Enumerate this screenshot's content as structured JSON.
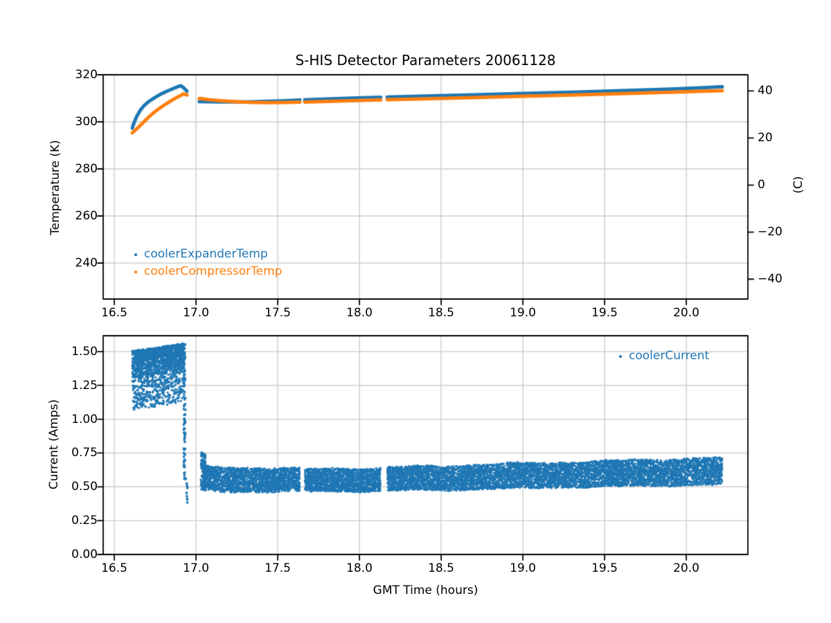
{
  "colors": {
    "blue": "#1f77b4",
    "orange": "#ff7f0e",
    "grid": "#cccccc",
    "spine": "#000000",
    "text": "#000000",
    "background": "#ffffff"
  },
  "chart_data": [
    {
      "type": "scatter",
      "title": "S-HIS Detector Parameters 20061128",
      "ylabel": "Temperature (K)",
      "y2label": "(C)",
      "xlim": [
        16.432,
        20.377
      ],
      "ylim": [
        224.7,
        320
      ],
      "grid": true,
      "legend_loc": "lower left",
      "xticks": [
        {
          "v": 16.5,
          "label": "16.5"
        },
        {
          "v": 17.0,
          "label": "17.0"
        },
        {
          "v": 17.5,
          "label": "17.5"
        },
        {
          "v": 18.0,
          "label": "18.0"
        },
        {
          "v": 18.5,
          "label": "18.5"
        },
        {
          "v": 19.0,
          "label": "19.0"
        },
        {
          "v": 19.5,
          "label": "19.5"
        },
        {
          "v": 20.0,
          "label": "20.0"
        }
      ],
      "yticks": [
        {
          "v": 240,
          "label": "240"
        },
        {
          "v": 260,
          "label": "260"
        },
        {
          "v": 280,
          "label": "280"
        },
        {
          "v": 300,
          "label": "300"
        },
        {
          "v": 320,
          "label": "320"
        }
      ],
      "y2ticks": [
        {
          "v": -40,
          "label": "−40"
        },
        {
          "v": -20,
          "label": "−20"
        },
        {
          "v": 0,
          "label": "0"
        },
        {
          "v": 20,
          "label": "20"
        },
        {
          "v": 40,
          "label": "40"
        }
      ],
      "y2_to_y_offset": 273.15,
      "series": [
        {
          "name": "coolerExpanderTemp",
          "color": "#1f77b4",
          "style": "thick-dot-line",
          "linewidth": 5,
          "segments": [
            [
              [
                16.61,
                297.4
              ],
              [
                16.622,
                299.8
              ],
              [
                16.638,
                302.4
              ],
              [
                16.658,
                304.8
              ],
              [
                16.682,
                306.9
              ],
              [
                16.71,
                308.6
              ],
              [
                16.745,
                310.2
              ],
              [
                16.785,
                311.8
              ],
              [
                16.825,
                313.1
              ],
              [
                16.862,
                314.2
              ],
              [
                16.895,
                315.1
              ],
              [
                16.908,
                315.3
              ],
              [
                16.925,
                314.4
              ],
              [
                16.945,
                313.0
              ]
            ],
            [
              [
                17.02,
                308.6
              ],
              [
                17.08,
                308.5
              ],
              [
                17.15,
                308.45
              ],
              [
                17.25,
                308.45
              ],
              [
                17.35,
                308.55
              ],
              [
                17.45,
                308.75
              ],
              [
                17.55,
                309.0
              ],
              [
                17.635,
                309.3
              ]
            ],
            [
              [
                17.665,
                309.35
              ],
              [
                17.8,
                309.7
              ],
              [
                17.95,
                310.05
              ],
              [
                18.13,
                310.45
              ]
            ],
            [
              [
                18.17,
                310.5
              ],
              [
                18.4,
                310.95
              ],
              [
                18.7,
                311.5
              ],
              [
                19.0,
                312.05
              ],
              [
                19.3,
                312.6
              ],
              [
                19.6,
                313.2
              ],
              [
                19.9,
                313.9
              ],
              [
                20.1,
                314.45
              ],
              [
                20.22,
                314.9
              ]
            ]
          ]
        },
        {
          "name": "coolerCompressorTemp",
          "color": "#ff7f0e",
          "style": "thick-dot-line",
          "linewidth": 5,
          "segments": [
            [
              [
                16.61,
                295.3
              ],
              [
                16.64,
                297.2
              ],
              [
                16.675,
                299.6
              ],
              [
                16.71,
                302.0
              ],
              [
                16.75,
                304.4
              ],
              [
                16.79,
                306.4
              ],
              [
                16.83,
                308.2
              ],
              [
                16.87,
                309.9
              ],
              [
                16.9,
                311.0
              ],
              [
                16.925,
                311.9
              ],
              [
                16.945,
                311.4
              ]
            ],
            [
              [
                17.02,
                309.9
              ],
              [
                17.08,
                309.4
              ],
              [
                17.15,
                309.0
              ],
              [
                17.25,
                308.5
              ],
              [
                17.35,
                308.25
              ],
              [
                17.45,
                308.15
              ],
              [
                17.55,
                308.2
              ],
              [
                17.635,
                308.35
              ]
            ],
            [
              [
                17.665,
                308.4
              ],
              [
                17.8,
                308.7
              ],
              [
                17.95,
                309.0
              ],
              [
                18.13,
                309.35
              ]
            ],
            [
              [
                18.17,
                309.4
              ],
              [
                18.4,
                309.8
              ],
              [
                18.7,
                310.3
              ],
              [
                19.0,
                310.85
              ],
              [
                19.3,
                311.4
              ],
              [
                19.6,
                312.0
              ],
              [
                19.9,
                312.6
              ],
              [
                20.1,
                313.0
              ],
              [
                20.22,
                313.2
              ]
            ]
          ]
        }
      ]
    },
    {
      "type": "scatter",
      "title": "",
      "ylabel": "Current (Amps)",
      "xlabel": "GMT Time (hours)",
      "xlim": [
        16.432,
        20.377
      ],
      "ylim": [
        0,
        1.617
      ],
      "grid": true,
      "legend_loc": "upper right",
      "xticks": [
        {
          "v": 16.5,
          "label": "16.5"
        },
        {
          "v": 17.0,
          "label": "17.0"
        },
        {
          "v": 17.5,
          "label": "17.5"
        },
        {
          "v": 18.0,
          "label": "18.0"
        },
        {
          "v": 18.5,
          "label": "18.5"
        },
        {
          "v": 19.0,
          "label": "19.0"
        },
        {
          "v": 19.5,
          "label": "19.5"
        },
        {
          "v": 20.0,
          "label": "20.0"
        }
      ],
      "yticks": [
        {
          "v": 0.0,
          "label": "0.00"
        },
        {
          "v": 0.25,
          "label": "0.25"
        },
        {
          "v": 0.5,
          "label": "0.50"
        },
        {
          "v": 0.75,
          "label": "0.75"
        },
        {
          "v": 1.0,
          "label": "1.00"
        },
        {
          "v": 1.25,
          "label": "1.25"
        },
        {
          "v": 1.5,
          "label": "1.50"
        }
      ],
      "series": [
        {
          "name": "coolerCurrent",
          "color": "#1f77b4",
          "style": "scatter-regions",
          "marker_px": 2.6,
          "regions": [
            {
              "kind": "cloud",
              "x0": 16.61,
              "x1": 16.925,
              "top0": 1.5,
              "top1": 1.555,
              "bot0": 1.07,
              "bot1": 1.13,
              "n": 1900
            },
            {
              "kind": "streak",
              "x0": 16.92,
              "x1": 16.952,
              "ytop": 1.56,
              "ybot": 0.375,
              "n": 140
            },
            {
              "kind": "band",
              "x0": 17.028,
              "x1": 17.06,
              "c0": 0.62,
              "c1": 0.61,
              "hw0": 0.15,
              "hw1": 0.13,
              "n": 130
            },
            {
              "kind": "band",
              "x0": 17.04,
              "x1": 17.635,
              "c0": 0.558,
              "c1": 0.549,
              "hw0": 0.093,
              "hw1": 0.085,
              "n": 2300
            },
            {
              "kind": "band",
              "x0": 17.665,
              "x1": 18.13,
              "c0": 0.549,
              "c1": 0.553,
              "hw0": 0.085,
              "hw1": 0.085,
              "n": 1850
            },
            {
              "kind": "band",
              "x0": 18.17,
              "x1": 20.22,
              "c0": 0.556,
              "c1": 0.617,
              "hw0": 0.088,
              "hw1": 0.1,
              "n": 7600
            }
          ]
        }
      ]
    }
  ]
}
